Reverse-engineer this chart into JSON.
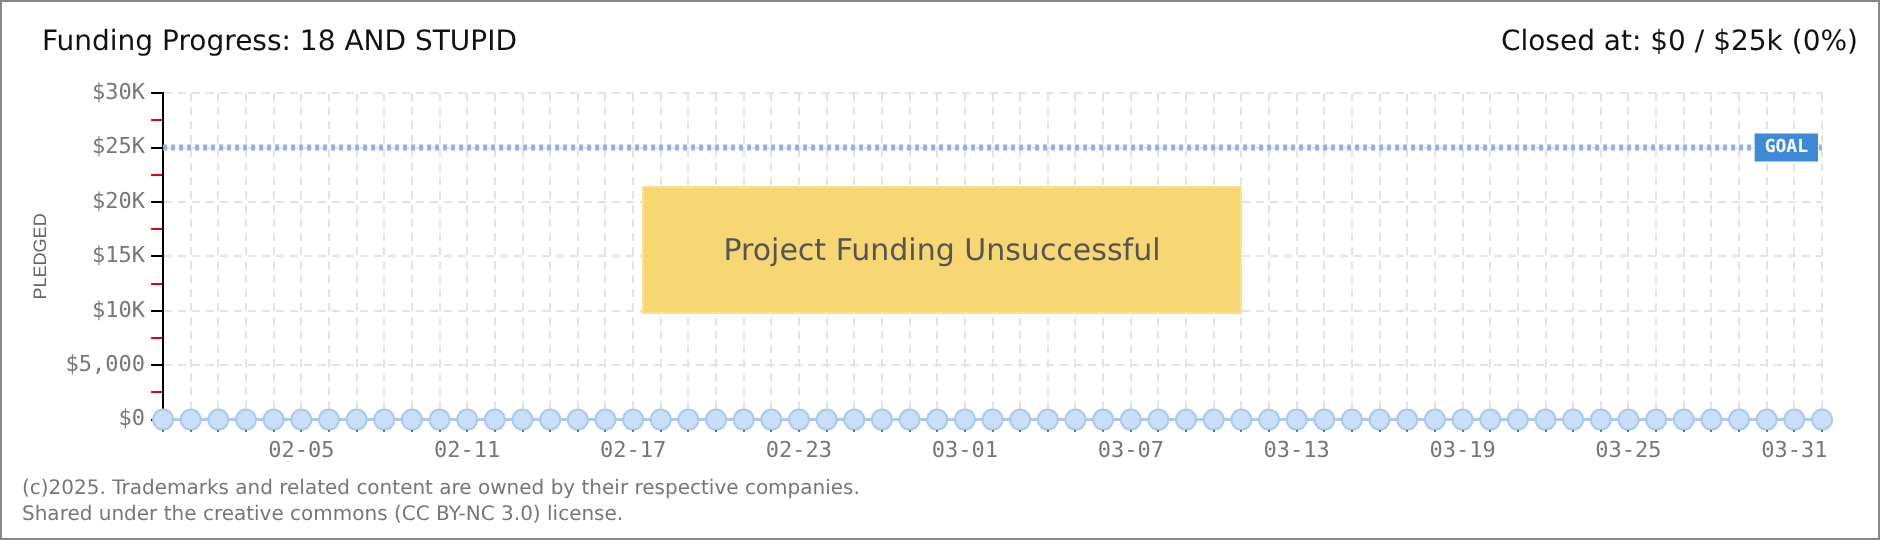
{
  "chart_data": {
    "type": "line",
    "title": "Funding Progress: 18 AND STUPID",
    "subtitle": "Closed at: $0 / $25k (0%)",
    "ylabel": "PLEDGED",
    "categories": [
      null,
      null,
      null,
      null,
      null,
      "02-05",
      null,
      null,
      null,
      null,
      null,
      "02-11",
      null,
      null,
      null,
      null,
      null,
      "02-17",
      null,
      null,
      null,
      null,
      null,
      "02-23",
      null,
      null,
      null,
      null,
      null,
      "03-01",
      null,
      null,
      null,
      null,
      null,
      "03-07",
      null,
      null,
      null,
      null,
      null,
      "03-13",
      null,
      null,
      null,
      null,
      null,
      "03-19",
      null,
      null,
      null,
      null,
      null,
      "03-25",
      null,
      null,
      null,
      null,
      null,
      "03-31",
      null
    ],
    "series": [
      {
        "color": "#a9c9ef",
        "values": [
          0,
          0,
          0,
          0,
          0,
          0,
          0,
          0,
          0,
          0,
          0,
          0,
          0,
          0,
          0,
          0,
          0,
          0,
          0,
          0,
          0,
          0,
          0,
          0,
          0,
          0,
          0,
          0,
          0,
          0,
          0,
          0,
          0,
          0,
          0,
          0,
          0,
          0,
          0,
          0,
          0,
          0,
          0,
          0,
          0,
          0,
          0,
          0,
          0,
          0,
          0,
          0,
          0,
          0,
          0,
          0,
          0,
          0,
          0,
          0,
          0
        ]
      }
    ],
    "ylim": [
      0,
      30000
    ],
    "yticks": [
      {
        "value": 0,
        "label": "$0"
      },
      {
        "value": 2500,
        "label": null
      },
      {
        "value": 5000,
        "label": "$5,000"
      },
      {
        "value": 7500,
        "label": null
      },
      {
        "value": 10000,
        "label": "$10K"
      },
      {
        "value": 12500,
        "label": null
      },
      {
        "value": 15000,
        "label": "$15K"
      },
      {
        "value": 17500,
        "label": null
      },
      {
        "value": 20000,
        "label": "$20K"
      },
      {
        "value": 22500,
        "label": null
      },
      {
        "value": 25000,
        "label": "$25K"
      },
      {
        "value": 27500,
        "label": null
      },
      {
        "value": 30000,
        "label": "$30K"
      }
    ],
    "ref_lines": [
      {
        "axis": "y",
        "value": 25000,
        "label": "GOAL",
        "color": "#8fb4e3",
        "line_style": "dotted"
      }
    ],
    "annotations": [
      "Project Funding Unsuccessful",
      "(c)2025. Trademarks and related content are owned by their respective companies.",
      "Shared under the creative commons (CC BY-NC 3.0) license."
    ],
    "grid": true,
    "legend": false,
    "marker": "circle",
    "line_style": "solid"
  }
}
